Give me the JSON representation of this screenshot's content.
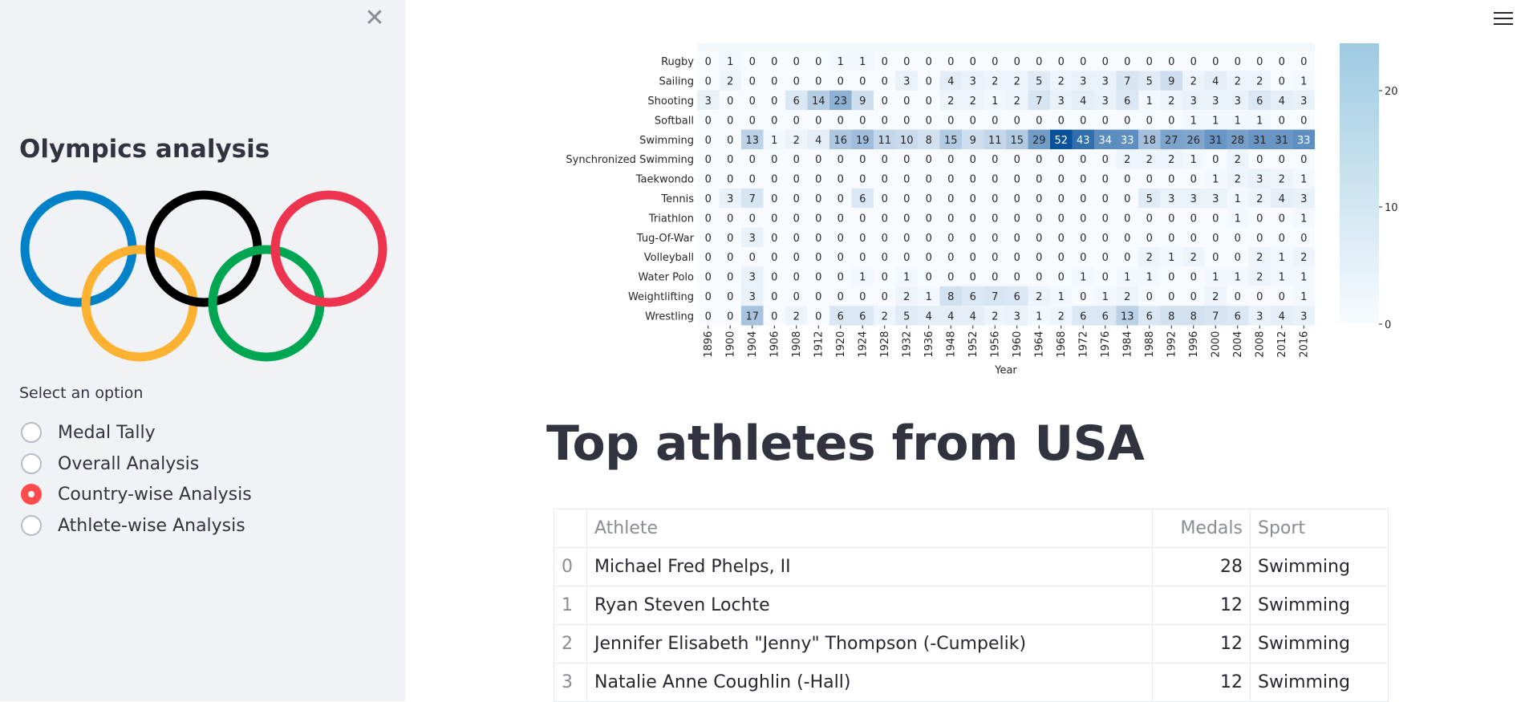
{
  "sidebar": {
    "close_icon": "close-icon",
    "title": "Olympics analysis",
    "logo": {
      "name": "olympic-rings-logo",
      "ring_colors": [
        "#0081c8",
        "#fcb131",
        "#000000",
        "#00a651",
        "#ee334e"
      ]
    },
    "select_label": "Select an option",
    "options": [
      {
        "label": "Medal Tally",
        "selected": false
      },
      {
        "label": "Overall Analysis",
        "selected": false
      },
      {
        "label": "Country-wise Analysis",
        "selected": true
      },
      {
        "label": "Athlete-wise Analysis",
        "selected": false
      }
    ],
    "accent_color": "#ff4b4b"
  },
  "header": {
    "menu_icon": "hamburger-menu-icon"
  },
  "chart_data": {
    "type": "heatmap",
    "xlabel": "Year",
    "ylabel": "",
    "x": [
      "1896",
      "1900",
      "1904",
      "1906",
      "1908",
      "1912",
      "1920",
      "1924",
      "1928",
      "1932",
      "1936",
      "1948",
      "1952",
      "1956",
      "1960",
      "1964",
      "1968",
      "1972",
      "1976",
      "1984",
      "1988",
      "1992",
      "1996",
      "2000",
      "2004",
      "2008",
      "2012",
      "2016"
    ],
    "y": [
      "Rugby",
      "Sailing",
      "Shooting",
      "Softball",
      "Swimming",
      "Synchronized Swimming",
      "Taekwondo",
      "Tennis",
      "Triathlon",
      "Tug-Of-War",
      "Volleyball",
      "Water Polo",
      "Weightlifting",
      "Wrestling"
    ],
    "values": [
      [
        0,
        1,
        0,
        0,
        0,
        0,
        1,
        1,
        0,
        0,
        0,
        0,
        0,
        0,
        0,
        0,
        0,
        0,
        0,
        0,
        0,
        0,
        0,
        0,
        0,
        0,
        0,
        0
      ],
      [
        0,
        2,
        0,
        0,
        0,
        0,
        0,
        0,
        0,
        3,
        0,
        4,
        3,
        2,
        2,
        5,
        2,
        3,
        3,
        7,
        5,
        9,
        2,
        4,
        2,
        2,
        0,
        1
      ],
      [
        3,
        0,
        0,
        0,
        6,
        14,
        23,
        9,
        0,
        0,
        0,
        2,
        2,
        1,
        2,
        7,
        3,
        4,
        3,
        6,
        1,
        2,
        3,
        3,
        3,
        6,
        4,
        3
      ],
      [
        0,
        0,
        0,
        0,
        0,
        0,
        0,
        0,
        0,
        0,
        0,
        0,
        0,
        0,
        0,
        0,
        0,
        0,
        0,
        0,
        0,
        0,
        1,
        1,
        1,
        1,
        0,
        0
      ],
      [
        0,
        0,
        13,
        1,
        2,
        4,
        16,
        19,
        11,
        10,
        8,
        15,
        9,
        11,
        15,
        29,
        52,
        43,
        34,
        33,
        18,
        27,
        26,
        31,
        28,
        31,
        31,
        33
      ],
      [
        0,
        0,
        0,
        0,
        0,
        0,
        0,
        0,
        0,
        0,
        0,
        0,
        0,
        0,
        0,
        0,
        0,
        0,
        0,
        2,
        2,
        2,
        1,
        0,
        2,
        0,
        0,
        0
      ],
      [
        0,
        0,
        0,
        0,
        0,
        0,
        0,
        0,
        0,
        0,
        0,
        0,
        0,
        0,
        0,
        0,
        0,
        0,
        0,
        0,
        0,
        0,
        0,
        1,
        2,
        3,
        2,
        1
      ],
      [
        0,
        3,
        7,
        0,
        0,
        0,
        0,
        6,
        0,
        0,
        0,
        0,
        0,
        0,
        0,
        0,
        0,
        0,
        0,
        0,
        5,
        3,
        3,
        3,
        1,
        2,
        4,
        3
      ],
      [
        0,
        0,
        0,
        0,
        0,
        0,
        0,
        0,
        0,
        0,
        0,
        0,
        0,
        0,
        0,
        0,
        0,
        0,
        0,
        0,
        0,
        0,
        0,
        0,
        1,
        0,
        0,
        1
      ],
      [
        0,
        0,
        3,
        0,
        0,
        0,
        0,
        0,
        0,
        0,
        0,
        0,
        0,
        0,
        0,
        0,
        0,
        0,
        0,
        0,
        0,
        0,
        0,
        0,
        0,
        0,
        0,
        0
      ],
      [
        0,
        0,
        0,
        0,
        0,
        0,
        0,
        0,
        0,
        0,
        0,
        0,
        0,
        0,
        0,
        0,
        0,
        0,
        0,
        0,
        2,
        1,
        2,
        0,
        0,
        2,
        1,
        2
      ],
      [
        0,
        0,
        3,
        0,
        0,
        0,
        0,
        1,
        0,
        1,
        0,
        0,
        0,
        0,
        0,
        0,
        0,
        1,
        0,
        1,
        1,
        0,
        0,
        1,
        1,
        2,
        1,
        1
      ],
      [
        0,
        0,
        3,
        0,
        0,
        0,
        0,
        0,
        0,
        2,
        1,
        8,
        6,
        7,
        6,
        2,
        1,
        0,
        1,
        2,
        0,
        0,
        0,
        2,
        0,
        0,
        0,
        1
      ],
      [
        0,
        0,
        17,
        0,
        2,
        0,
        6,
        6,
        2,
        5,
        4,
        4,
        4,
        2,
        3,
        1,
        2,
        6,
        6,
        13,
        6,
        8,
        8,
        7,
        6,
        3,
        4,
        3
      ]
    ],
    "colorbar": {
      "ticks": [
        "0",
        "10",
        "20"
      ]
    },
    "cmap": [
      "#f7fbff",
      "#08519c"
    ]
  },
  "section": {
    "title": "Top athletes from USA"
  },
  "table": {
    "columns": [
      "",
      "Athlete",
      "Medals",
      "Sport"
    ],
    "rows": [
      [
        "0",
        "Michael Fred Phelps, II",
        "28",
        "Swimming"
      ],
      [
        "1",
        "Ryan Steven Lochte",
        "12",
        "Swimming"
      ],
      [
        "2",
        "Jennifer Elisabeth \"Jenny\" Thompson (-Cumpelik)",
        "12",
        "Swimming"
      ],
      [
        "3",
        "Natalie Anne Coughlin (-Hall)",
        "12",
        "Swimming"
      ]
    ]
  }
}
